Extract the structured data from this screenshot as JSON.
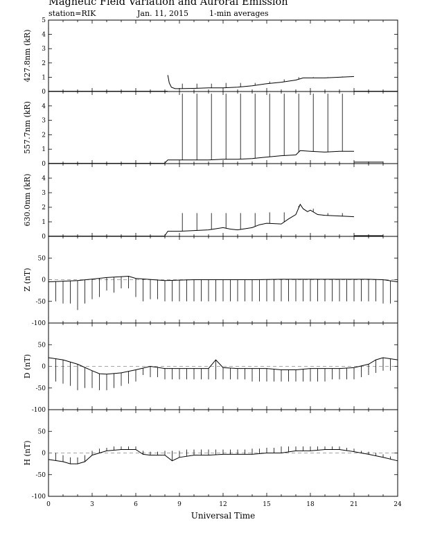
{
  "header": {
    "title": "Magnetic Field Variation and Auroral Emission",
    "station": "station=RIK",
    "date": "Jan. 11, 2015",
    "averaging": "1-min averages"
  },
  "chart_data": [
    {
      "type": "line",
      "ylabel": "427.8nm (kR)",
      "ylim": [
        0,
        5
      ],
      "yticks": [
        0,
        1,
        2,
        3,
        4,
        5
      ],
      "xlim": [
        0,
        24
      ],
      "baseline_segments": [
        [
          0,
          8.2,
          0.02
        ],
        [
          21,
          24,
          0.02
        ]
      ],
      "series": [
        {
          "x": [
            8.2,
            8.3,
            8.45,
            8.7,
            9,
            10,
            11,
            12,
            13,
            14,
            15,
            16,
            17,
            17.5,
            18,
            19,
            20,
            21
          ],
          "y": [
            1.15,
            0.6,
            0.3,
            0.2,
            0.2,
            0.22,
            0.25,
            0.25,
            0.3,
            0.4,
            0.55,
            0.65,
            0.8,
            0.95,
            0.95,
            0.95,
            1.0,
            1.05
          ]
        }
      ],
      "spikes": [
        {
          "x": 9.2,
          "y": 0.55
        },
        {
          "x": 10.2,
          "y": 0.55
        },
        {
          "x": 11.2,
          "y": 0.55
        },
        {
          "x": 12.2,
          "y": 0.6
        },
        {
          "x": 13.2,
          "y": 0.6
        },
        {
          "x": 14.2,
          "y": 0.6
        },
        {
          "x": 15.2,
          "y": 0.7
        },
        {
          "x": 16.2,
          "y": 0.85
        },
        {
          "x": 17.2,
          "y": 1.0
        },
        {
          "x": 18.2,
          "y": 1.0
        },
        {
          "x": 19.2,
          "y": 1.0
        },
        {
          "x": 20.2,
          "y": 1.05
        }
      ]
    },
    {
      "type": "line",
      "ylabel": "557.7nm (kR)",
      "ylim": [
        0,
        5
      ],
      "yticks": [
        0,
        1,
        2,
        3,
        4
      ],
      "xlim": [
        0,
        24
      ],
      "baseline_segments": [
        [
          0,
          8.0,
          0.02
        ],
        [
          21,
          23,
          0.1
        ]
      ],
      "series": [
        {
          "x": [
            8.0,
            8.2,
            9,
            10,
            11,
            12,
            13,
            14,
            15,
            16,
            17,
            17.3,
            18,
            19,
            20,
            21
          ],
          "y": [
            0.05,
            0.25,
            0.25,
            0.25,
            0.25,
            0.3,
            0.3,
            0.35,
            0.45,
            0.55,
            0.6,
            0.9,
            0.85,
            0.8,
            0.85,
            0.85
          ]
        }
      ],
      "spikes": [
        {
          "x": 9.2,
          "y": 4.85
        },
        {
          "x": 10.2,
          "y": 4.85
        },
        {
          "x": 11.2,
          "y": 4.85
        },
        {
          "x": 12.2,
          "y": 4.85
        },
        {
          "x": 13.2,
          "y": 4.85
        },
        {
          "x": 14.2,
          "y": 4.85
        },
        {
          "x": 15.2,
          "y": 4.85
        },
        {
          "x": 16.2,
          "y": 4.85
        },
        {
          "x": 17.2,
          "y": 4.85
        },
        {
          "x": 18.2,
          "y": 4.85
        },
        {
          "x": 19.2,
          "y": 4.85
        },
        {
          "x": 20.2,
          "y": 4.85
        }
      ]
    },
    {
      "type": "line",
      "ylabel": "630.0nm (kR)",
      "ylim": [
        0,
        5
      ],
      "yticks": [
        0,
        1,
        2,
        3,
        4
      ],
      "xlim": [
        0,
        24
      ],
      "baseline_segments": [
        [
          0,
          8.0,
          0.02
        ],
        [
          21,
          23,
          0.05
        ]
      ],
      "series": [
        {
          "x": [
            8.0,
            8.2,
            9,
            10,
            11,
            12,
            12.5,
            13,
            14,
            14.5,
            15,
            16,
            16.5,
            17,
            17.3,
            17.5,
            17.8,
            18,
            18.5,
            19,
            20,
            21
          ],
          "y": [
            0.05,
            0.35,
            0.35,
            0.4,
            0.45,
            0.6,
            0.5,
            0.45,
            0.6,
            0.8,
            0.9,
            0.85,
            1.2,
            1.5,
            2.2,
            1.9,
            1.7,
            1.8,
            1.5,
            1.45,
            1.4,
            1.35
          ]
        }
      ],
      "spikes": [
        {
          "x": 9.2,
          "y": 1.6
        },
        {
          "x": 10.2,
          "y": 1.6
        },
        {
          "x": 11.2,
          "y": 1.6
        },
        {
          "x": 12.2,
          "y": 1.6
        },
        {
          "x": 13.2,
          "y": 1.6
        },
        {
          "x": 14.2,
          "y": 1.6
        },
        {
          "x": 15.2,
          "y": 1.65
        },
        {
          "x": 16.2,
          "y": 1.65
        },
        {
          "x": 17.2,
          "y": 2.1
        },
        {
          "x": 18.2,
          "y": 1.9
        },
        {
          "x": 19.2,
          "y": 1.6
        },
        {
          "x": 20.2,
          "y": 1.6
        }
      ]
    },
    {
      "type": "line",
      "ylabel": "Z (nT)",
      "ylim": [
        -100,
        100
      ],
      "yticks": [
        -100,
        -50,
        0,
        50
      ],
      "xlim": [
        0,
        24
      ],
      "dashed_zero": true,
      "series": [
        {
          "x": [
            0,
            2,
            4,
            5.5,
            6,
            8,
            10,
            12,
            14,
            16,
            18,
            20,
            22,
            23,
            24
          ],
          "y": [
            -5,
            -2,
            5,
            8,
            3,
            -2,
            0,
            0,
            0,
            1,
            1,
            1,
            1,
            0,
            -5
          ]
        }
      ],
      "spikes": [
        {
          "x": 0.5,
          "y": -50
        },
        {
          "x": 1.0,
          "y": -55
        },
        {
          "x": 1.5,
          "y": -55
        },
        {
          "x": 2.0,
          "y": -70
        },
        {
          "x": 2.5,
          "y": -55
        },
        {
          "x": 3.0,
          "y": -45
        },
        {
          "x": 3.5,
          "y": -40
        },
        {
          "x": 4.0,
          "y": -25
        },
        {
          "x": 4.5,
          "y": -30
        },
        {
          "x": 5.0,
          "y": -20
        },
        {
          "x": 5.5,
          "y": -20
        },
        {
          "x": 6.0,
          "y": -40
        },
        {
          "x": 6.5,
          "y": -50
        },
        {
          "x": 7.0,
          "y": -45
        },
        {
          "x": 7.5,
          "y": -45
        },
        {
          "x": 8.0,
          "y": -50
        },
        {
          "x": 8.5,
          "y": -50
        },
        {
          "x": 9.0,
          "y": -50
        },
        {
          "x": 9.5,
          "y": -50
        },
        {
          "x": 10.0,
          "y": -50
        },
        {
          "x": 10.5,
          "y": -50
        },
        {
          "x": 11.0,
          "y": -50
        },
        {
          "x": 11.5,
          "y": -50
        },
        {
          "x": 12.0,
          "y": -50
        },
        {
          "x": 12.5,
          "y": -50
        },
        {
          "x": 13.0,
          "y": -50
        },
        {
          "x": 13.5,
          "y": -50
        },
        {
          "x": 14.0,
          "y": -50
        },
        {
          "x": 14.5,
          "y": -50
        },
        {
          "x": 15.0,
          "y": -50
        },
        {
          "x": 15.5,
          "y": -50
        },
        {
          "x": 16.0,
          "y": -50
        },
        {
          "x": 16.5,
          "y": -50
        },
        {
          "x": 17.0,
          "y": -50
        },
        {
          "x": 17.5,
          "y": -50
        },
        {
          "x": 18.0,
          "y": -50
        },
        {
          "x": 18.5,
          "y": -50
        },
        {
          "x": 19.0,
          "y": -50
        },
        {
          "x": 19.5,
          "y": -50
        },
        {
          "x": 20.0,
          "y": -50
        },
        {
          "x": 20.5,
          "y": -50
        },
        {
          "x": 21.0,
          "y": -50
        },
        {
          "x": 21.5,
          "y": -50
        },
        {
          "x": 22.0,
          "y": -50
        },
        {
          "x": 22.5,
          "y": -50
        },
        {
          "x": 23.0,
          "y": -55
        },
        {
          "x": 23.5,
          "y": -55
        }
      ]
    },
    {
      "type": "line",
      "ylabel": "D (nT)",
      "ylim": [
        -100,
        100
      ],
      "yticks": [
        -100,
        -50,
        0,
        50
      ],
      "xlim": [
        0,
        24
      ],
      "dashed_zero": true,
      "series": [
        {
          "x": [
            0,
            1,
            2,
            3,
            3.5,
            4,
            5,
            6,
            7,
            8,
            9,
            10,
            11,
            11.5,
            12,
            13,
            14,
            15,
            16,
            17,
            18,
            19,
            20,
            21,
            22,
            22.5,
            23,
            24
          ],
          "y": [
            20,
            15,
            5,
            -10,
            -17,
            -18,
            -15,
            -8,
            0,
            -5,
            -5,
            -5,
            -5,
            15,
            -3,
            -5,
            -5,
            -5,
            -8,
            -8,
            -5,
            -5,
            -5,
            -3,
            5,
            15,
            20,
            15
          ]
        }
      ],
      "spikes": [
        {
          "x": 0.5,
          "y": -35
        },
        {
          "x": 1.0,
          "y": -40
        },
        {
          "x": 1.5,
          "y": -45
        },
        {
          "x": 2.0,
          "y": -55
        },
        {
          "x": 2.5,
          "y": -50
        },
        {
          "x": 3.0,
          "y": -50
        },
        {
          "x": 3.5,
          "y": -55
        },
        {
          "x": 4.0,
          "y": -55
        },
        {
          "x": 4.5,
          "y": -50
        },
        {
          "x": 5.0,
          "y": -45
        },
        {
          "x": 5.5,
          "y": -40
        },
        {
          "x": 6.0,
          "y": -35
        },
        {
          "x": 6.5,
          "y": -20
        },
        {
          "x": 7.0,
          "y": -25
        },
        {
          "x": 7.5,
          "y": -25
        },
        {
          "x": 8.0,
          "y": -30
        },
        {
          "x": 8.5,
          "y": -30
        },
        {
          "x": 9.0,
          "y": -30
        },
        {
          "x": 9.5,
          "y": -30
        },
        {
          "x": 10.0,
          "y": -30
        },
        {
          "x": 10.5,
          "y": -30
        },
        {
          "x": 11.0,
          "y": -30
        },
        {
          "x": 11.5,
          "y": -30
        },
        {
          "x": 12.0,
          "y": -30
        },
        {
          "x": 12.5,
          "y": -30
        },
        {
          "x": 13.0,
          "y": -30
        },
        {
          "x": 13.5,
          "y": -30
        },
        {
          "x": 14.0,
          "y": -35
        },
        {
          "x": 14.5,
          "y": -35
        },
        {
          "x": 15.0,
          "y": -35
        },
        {
          "x": 15.5,
          "y": -35
        },
        {
          "x": 16.0,
          "y": -35
        },
        {
          "x": 16.5,
          "y": -35
        },
        {
          "x": 17.0,
          "y": -35
        },
        {
          "x": 17.5,
          "y": -35
        },
        {
          "x": 18.0,
          "y": -35
        },
        {
          "x": 18.5,
          "y": -35
        },
        {
          "x": 19.0,
          "y": -35
        },
        {
          "x": 19.5,
          "y": -30
        },
        {
          "x": 20.0,
          "y": -30
        },
        {
          "x": 20.5,
          "y": -30
        },
        {
          "x": 21.0,
          "y": -30
        },
        {
          "x": 21.5,
          "y": -25
        },
        {
          "x": 22.0,
          "y": -20
        },
        {
          "x": 22.5,
          "y": -15
        },
        {
          "x": 23.0,
          "y": -10
        },
        {
          "x": 23.5,
          "y": -10
        }
      ]
    },
    {
      "type": "line",
      "ylabel": "H (nT)",
      "ylim": [
        -100,
        100
      ],
      "yticks": [
        -100,
        -50,
        0,
        50
      ],
      "xlim": [
        0,
        24
      ],
      "xticks": [
        0,
        3,
        6,
        9,
        12,
        15,
        18,
        21,
        24
      ],
      "xlabel": "Universal Time",
      "dashed_zero": true,
      "series": [
        {
          "x": [
            0,
            1,
            1.5,
            2,
            2.5,
            3,
            4,
            5,
            6,
            6.5,
            7,
            8,
            8.5,
            9,
            10,
            11,
            12,
            13,
            14,
            15,
            16,
            17,
            18,
            19,
            20,
            21,
            22,
            23,
            24
          ],
          "y": [
            -15,
            -20,
            -25,
            -25,
            -20,
            -5,
            5,
            8,
            8,
            -3,
            -5,
            -5,
            -18,
            -10,
            -5,
            -5,
            -3,
            -3,
            -3,
            0,
            0,
            5,
            5,
            8,
            8,
            3,
            -3,
            -10,
            -18
          ]
        }
      ],
      "spikes": [
        {
          "x": 0.5,
          "y": 0
        },
        {
          "x": 1.0,
          "y": -5
        },
        {
          "x": 1.5,
          "y": -10
        },
        {
          "x": 2.0,
          "y": -10
        },
        {
          "x": 2.5,
          "y": -5
        },
        {
          "x": 3.0,
          "y": 5
        },
        {
          "x": 3.5,
          "y": 10
        },
        {
          "x": 4.0,
          "y": 12
        },
        {
          "x": 4.5,
          "y": 15
        },
        {
          "x": 5.0,
          "y": 15
        },
        {
          "x": 5.5,
          "y": 15
        },
        {
          "x": 6.0,
          "y": 15
        },
        {
          "x": 6.5,
          "y": 5
        },
        {
          "x": 7.0,
          "y": 3
        },
        {
          "x": 7.5,
          "y": 3
        },
        {
          "x": 8.0,
          "y": 5
        },
        {
          "x": 8.5,
          "y": 5
        },
        {
          "x": 9.0,
          "y": 5
        },
        {
          "x": 9.5,
          "y": 8
        },
        {
          "x": 10.0,
          "y": 8
        },
        {
          "x": 10.5,
          "y": 8
        },
        {
          "x": 11.0,
          "y": 8
        },
        {
          "x": 11.5,
          "y": 8
        },
        {
          "x": 12.0,
          "y": 8
        },
        {
          "x": 12.5,
          "y": 8
        },
        {
          "x": 13.0,
          "y": 8
        },
        {
          "x": 13.5,
          "y": 8
        },
        {
          "x": 14.0,
          "y": 10
        },
        {
          "x": 14.5,
          "y": 10
        },
        {
          "x": 15.0,
          "y": 12
        },
        {
          "x": 15.5,
          "y": 12
        },
        {
          "x": 16.0,
          "y": 15
        },
        {
          "x": 16.5,
          "y": 15
        },
        {
          "x": 17.0,
          "y": 15
        },
        {
          "x": 17.5,
          "y": 15
        },
        {
          "x": 18.0,
          "y": 15
        },
        {
          "x": 18.5,
          "y": 15
        },
        {
          "x": 19.0,
          "y": 15
        },
        {
          "x": 19.5,
          "y": 15
        },
        {
          "x": 20.0,
          "y": 15
        },
        {
          "x": 20.5,
          "y": 12
        },
        {
          "x": 21.0,
          "y": 10
        },
        {
          "x": 21.5,
          "y": 5
        },
        {
          "x": 22.0,
          "y": 3
        },
        {
          "x": 22.5,
          "y": 0
        },
        {
          "x": 23.0,
          "y": -3
        },
        {
          "x": 23.5,
          "y": -8
        }
      ]
    }
  ]
}
